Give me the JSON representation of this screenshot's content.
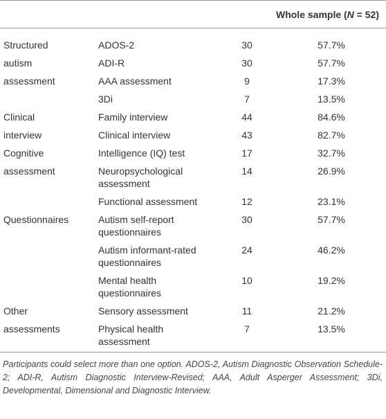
{
  "header": {
    "prefix": "Whole sample (",
    "n_symbol": "N",
    "suffix": " = 52)"
  },
  "groups": [
    {
      "label_lines": [
        "Structured",
        "autism",
        "assessment"
      ],
      "items": [
        {
          "name": "ADOS-2",
          "n": 30,
          "percent": "57.7%"
        },
        {
          "name": "ADI-R",
          "n": 30,
          "percent": "57.7%"
        },
        {
          "name": "AAA assessment",
          "n": 9,
          "percent": "17.3%"
        },
        {
          "name": "3Di",
          "n": 7,
          "percent": "13.5%"
        }
      ]
    },
    {
      "label_lines": [
        "Clinical",
        "interview"
      ],
      "items": [
        {
          "name": "Family interview",
          "n": 44,
          "percent": "84.6%"
        },
        {
          "name": "Clinical interview",
          "n": 43,
          "percent": "82.7%"
        }
      ]
    },
    {
      "label_lines": [
        "Cognitive",
        "assessment"
      ],
      "items": [
        {
          "name": "Intelligence (IQ) test",
          "n": 17,
          "percent": "32.7%"
        },
        {
          "name": "Neuropsychological assessment",
          "n": 14,
          "percent": "26.9%"
        },
        {
          "name": "Functional assessment",
          "n": 12,
          "percent": "23.1%"
        }
      ]
    },
    {
      "label_lines": [
        "Questionnaires"
      ],
      "items": [
        {
          "name": "Autism self-report questionnaires",
          "n": 30,
          "percent": "57.7%"
        },
        {
          "name": "Autism informant-rated questionnaires",
          "n": 24,
          "percent": "46.2%"
        },
        {
          "name": "Mental health questionnaires",
          "n": 10,
          "percent": "19.2%"
        }
      ]
    },
    {
      "label_lines": [
        "Other",
        "assessments"
      ],
      "items": [
        {
          "name": "Sensory assessment",
          "n": 11,
          "percent": "21.2%"
        },
        {
          "name": "Physical health assessment",
          "n": 7,
          "percent": "13.5%"
        }
      ]
    }
  ],
  "footnote": "Participants could select more than one option. ADOS-2, Autism Diagnostic Observation Schedule-2; ADI-R, Autism Diagnostic Interview-Revised; AAA, Adult Asperger Assessment; 3Di, Developmental, Dimensional and Diagnostic Interview."
}
